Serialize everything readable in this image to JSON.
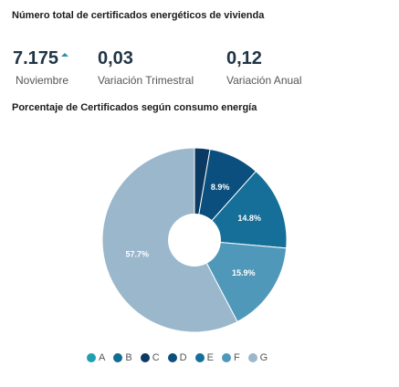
{
  "header": {
    "title": "Número total de certificados energéticos de vivienda"
  },
  "stats": [
    {
      "value": "7.175",
      "label": "Noviembre",
      "trend": "up"
    },
    {
      "value": "0,03",
      "label": "Variación Trimestral"
    },
    {
      "value": "0,12",
      "label": "Variación Anual"
    }
  ],
  "chart_data": {
    "type": "pie",
    "title": "Porcentaje de Certificados según consumo energía",
    "categories": [
      "A",
      "B",
      "C",
      "D",
      "E",
      "F",
      "G"
    ],
    "values": [
      0,
      0,
      2.7,
      8.9,
      14.8,
      15.9,
      57.7
    ],
    "labels": [
      "",
      "",
      "",
      "8.9%",
      "14.8%",
      "15.9%",
      "57.7%"
    ],
    "colors": [
      "#1f9fb0",
      "#0f6e93",
      "#0b3a63",
      "#0a4f7e",
      "#156f99",
      "#4f98ba",
      "#9ab7cc"
    ],
    "legend_position": "bottom"
  }
}
